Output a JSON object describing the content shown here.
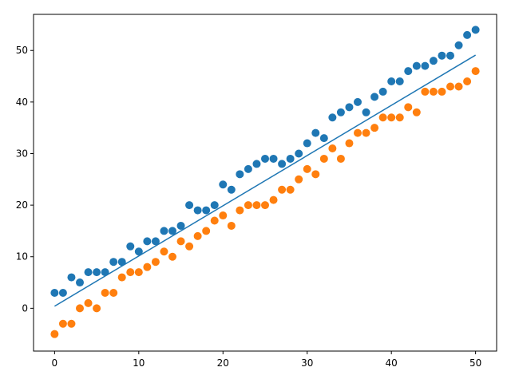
{
  "chart_data": {
    "type": "scatter",
    "title": "",
    "xlabel": "",
    "ylabel": "",
    "xlim": [
      -2.5,
      52.5
    ],
    "ylim": [
      -8.3,
      57.0
    ],
    "xticks": [
      "0",
      "10",
      "20",
      "30",
      "40",
      "50"
    ],
    "yticks": [
      "0",
      "10",
      "20",
      "30",
      "40",
      "50"
    ],
    "grid": false,
    "legend": "none",
    "x": [
      0,
      1,
      2,
      3,
      4,
      5,
      6,
      7,
      8,
      9,
      10,
      11,
      12,
      13,
      14,
      15,
      16,
      17,
      18,
      19,
      20,
      21,
      22,
      23,
      24,
      25,
      26,
      27,
      28,
      29,
      30,
      31,
      32,
      33,
      34,
      35,
      36,
      37,
      38,
      39,
      40,
      41,
      42,
      43,
      44,
      45,
      46,
      47,
      48,
      49,
      50
    ],
    "series": [
      {
        "kind": "scatter",
        "color": "#1f77b4",
        "values": [
          3,
          3,
          6,
          5,
          7,
          7,
          7,
          9,
          9,
          12,
          11,
          13,
          13,
          15,
          15,
          16,
          20,
          19,
          19,
          20,
          24,
          23,
          26,
          27,
          28,
          29,
          29,
          28,
          29,
          30,
          32,
          34,
          33,
          37,
          38,
          39,
          40,
          38,
          41,
          42,
          44,
          44,
          46,
          47,
          47,
          48,
          49,
          49,
          51,
          53,
          54
        ]
      },
      {
        "kind": "scatter",
        "color": "#ff7f0e",
        "values": [
          -5,
          -3,
          -3,
          0,
          1,
          0,
          3,
          3,
          6,
          7,
          7,
          8,
          9,
          11,
          10,
          13,
          12,
          14,
          15,
          17,
          18,
          16,
          19,
          20,
          20,
          20,
          21,
          23,
          23,
          25,
          27,
          26,
          29,
          31,
          29,
          32,
          34,
          34,
          35,
          37,
          37,
          37,
          39,
          38,
          42,
          42,
          42,
          43,
          43,
          44,
          46
        ]
      },
      {
        "kind": "line",
        "color": "#1f77b4",
        "x": [
          0,
          50
        ],
        "values": [
          0.4,
          49.1
        ]
      }
    ]
  }
}
